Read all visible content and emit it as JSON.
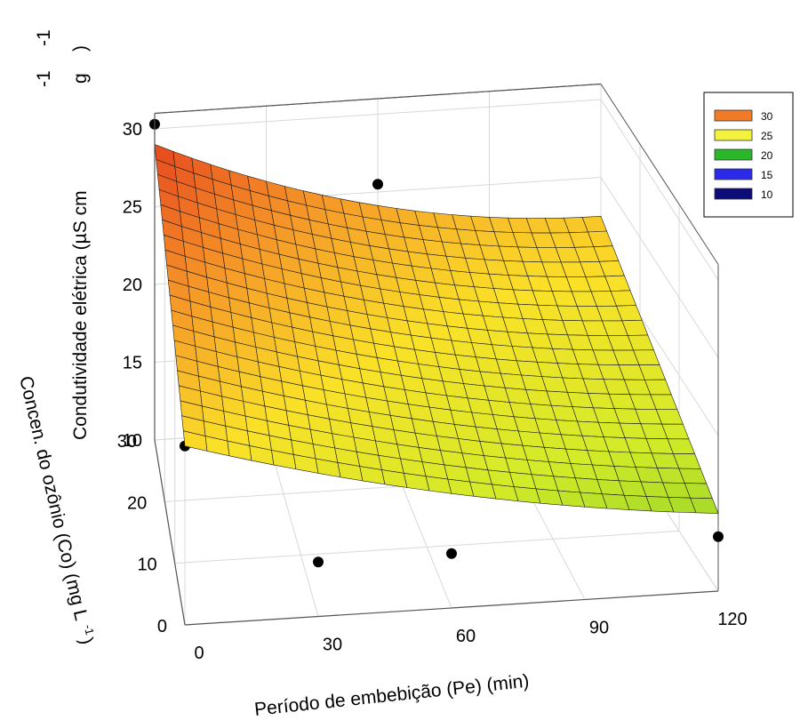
{
  "chart_data": {
    "type": "surface",
    "zlabel_main": "Condutividade elétrica (µS cm",
    "zlabel_unit_tail": "g",
    "zlabel_superscripts": [
      "-1",
      "-1"
    ],
    "zlabel_paren_close": ")",
    "xlabel": "Período de embebição (Pe) (min)",
    "ylabel": "Concen. do ozônio (Co) (mg L",
    "ylabel_superscript": "-1",
    "ylabel_paren_close": ")",
    "x_ticks": [
      "0",
      "30",
      "60",
      "90",
      "120"
    ],
    "y_ticks": [
      "0",
      "10",
      "20",
      "30"
    ],
    "z_ticks": [
      "10",
      "15",
      "20",
      "25",
      "30"
    ],
    "xlim": [
      0,
      120
    ],
    "ylim": [
      0,
      30
    ],
    "zlim": [
      10,
      30
    ],
    "legend": {
      "position": "top-right",
      "entries": [
        {
          "label": "30",
          "color": "#f07c28"
        },
        {
          "label": "25",
          "color": "#f2f23c"
        },
        {
          "label": "20",
          "color": "#2ab82a"
        },
        {
          "label": "15",
          "color": "#2a2ae8"
        },
        {
          "label": "10",
          "color": "#0c0c78"
        }
      ]
    },
    "surface_edges": {
      "Pe_0_Co_0": 21.5,
      "Pe_0_Co_30": 29.0,
      "Pe_120_Co_30": 22.5,
      "Pe_120_Co_0": 15.0
    },
    "observed_points": [
      {
        "Pe": 0,
        "Co": 30,
        "value": 30.3
      },
      {
        "Pe": 0,
        "Co": 0,
        "value": 21.5
      },
      {
        "Pe": 30,
        "Co": 30,
        "value": 24.8
      },
      {
        "Pe": 30,
        "Co": 0,
        "value": 13.5
      },
      {
        "Pe": 60,
        "Co": 30,
        "value": 25.5
      },
      {
        "Pe": 30,
        "Co": 15,
        "value": 20.5
      },
      {
        "Pe": 60,
        "Co": 0,
        "value": 13.5
      },
      {
        "Pe": 90,
        "Co": 30,
        "value": 21.5
      },
      {
        "Pe": 90,
        "Co": 22,
        "value": 21.0
      },
      {
        "Pe": 90,
        "Co": 5,
        "value": 15.5
      },
      {
        "Pe": 120,
        "Co": 30,
        "value": 20.5
      },
      {
        "Pe": 120,
        "Co": 0,
        "value": 13.5
      }
    ]
  }
}
